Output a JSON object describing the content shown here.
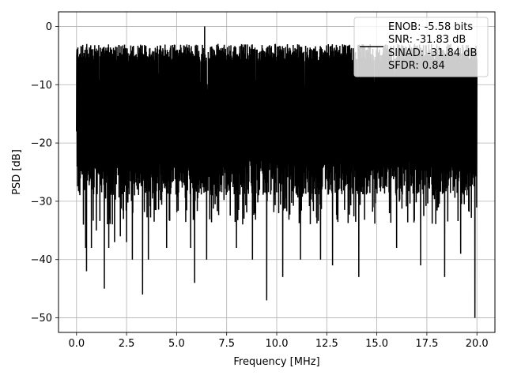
{
  "chart_data": {
    "type": "line",
    "title": "",
    "xlabel": "Frequency [MHz]",
    "ylabel": "PSD [dB]",
    "xlim": [
      -0.9,
      20.9
    ],
    "ylim": [
      -52.5,
      2.5
    ],
    "xticks": [
      0.0,
      2.5,
      5.0,
      7.5,
      10.0,
      12.5,
      15.0,
      17.5,
      20.0
    ],
    "xtick_labels": [
      "0.0",
      "2.5",
      "5.0",
      "7.5",
      "10.0",
      "12.5",
      "15.0",
      "17.5",
      "20.0"
    ],
    "yticks": [
      0,
      -10,
      -20,
      -30,
      -40,
      -50
    ],
    "ytick_labels": [
      "0",
      "−10",
      "−20",
      "−30",
      "−40",
      "−50"
    ],
    "grid": true,
    "legend_position": "top-right",
    "legend_entries": [
      "ENOB: -5.58 bits",
      "SNR: -31.83 dB",
      "SINAD: -31.84 dB",
      "SFDR: 0.84"
    ],
    "series": [
      {
        "color": "#000000",
        "x_range": [
          0.0,
          20.0
        ],
        "upper_envelope_typical": -5,
        "peak": {
          "x": 6.4,
          "y": 0.0
        },
        "notable_dips": [
          {
            "x": 0.35,
            "y": -34
          },
          {
            "x": 0.45,
            "y": -38
          },
          {
            "x": 0.5,
            "y": -42
          },
          {
            "x": 0.75,
            "y": -38
          },
          {
            "x": 1.0,
            "y": -35
          },
          {
            "x": 1.4,
            "y": -45
          },
          {
            "x": 1.6,
            "y": -38
          },
          {
            "x": 1.9,
            "y": -37
          },
          {
            "x": 2.2,
            "y": -36
          },
          {
            "x": 2.5,
            "y": -37
          },
          {
            "x": 2.8,
            "y": -40
          },
          {
            "x": 3.3,
            "y": -46
          },
          {
            "x": 3.6,
            "y": -40
          },
          {
            "x": 4.5,
            "y": -38
          },
          {
            "x": 5.7,
            "y": -38
          },
          {
            "x": 5.9,
            "y": -44
          },
          {
            "x": 6.5,
            "y": -40
          },
          {
            "x": 8.0,
            "y": -38
          },
          {
            "x": 8.8,
            "y": -40
          },
          {
            "x": 9.5,
            "y": -47
          },
          {
            "x": 10.3,
            "y": -43
          },
          {
            "x": 11.2,
            "y": -40
          },
          {
            "x": 12.2,
            "y": -40
          },
          {
            "x": 12.8,
            "y": -41
          },
          {
            "x": 14.1,
            "y": -43
          },
          {
            "x": 16.0,
            "y": -38
          },
          {
            "x": 17.2,
            "y": -41
          },
          {
            "x": 18.4,
            "y": -43
          },
          {
            "x": 19.2,
            "y": -39
          },
          {
            "x": 19.9,
            "y": -50
          }
        ]
      }
    ]
  }
}
